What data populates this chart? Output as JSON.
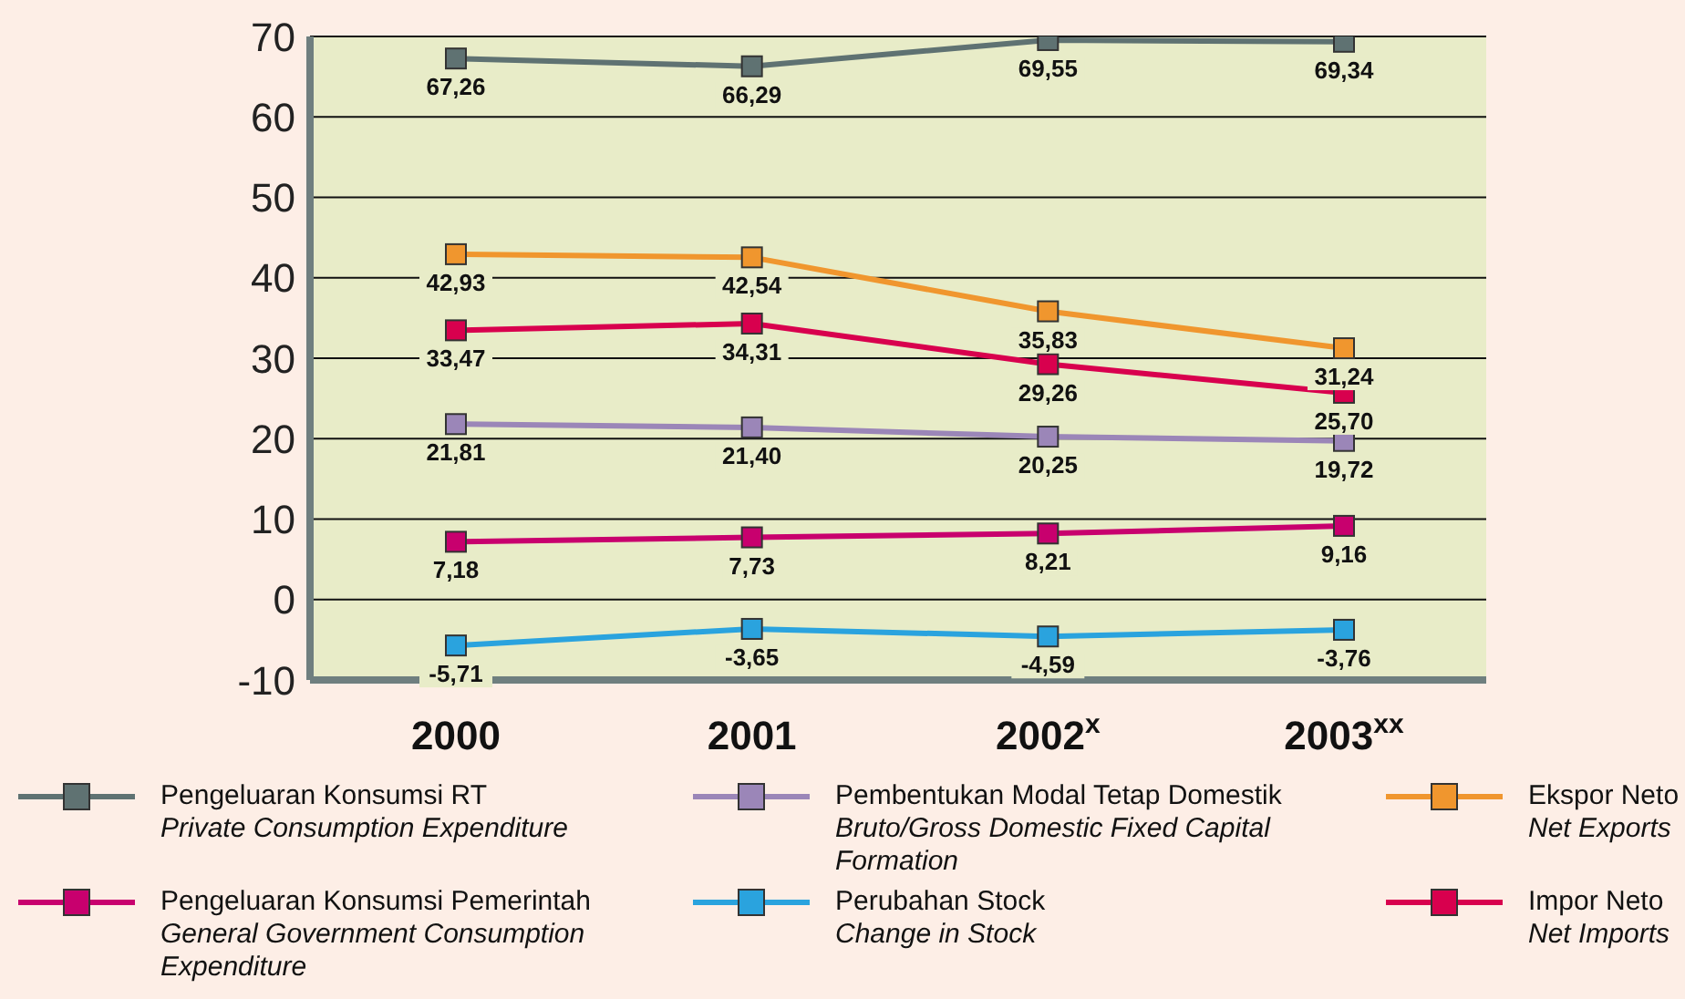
{
  "chart_data": {
    "type": "line",
    "categories": [
      "2000",
      "2001",
      "2002$^{x}$",
      "2003$^{xx}$"
    ],
    "series": [
      {
        "name": "Pengeluaran Konsumsi RT\nPrivate Consumption Expenditure",
        "color": "#5f7272",
        "values": [
          67.26,
          66.29,
          69.55,
          69.34
        ],
        "value_labels": [
          "67,26",
          "66,29",
          "69,55",
          "69,34"
        ]
      },
      {
        "name": "Pembentukan Modal Tetap Domestik\nBruto/Gross Domestic Fixed Capital Formation",
        "color": "#9b86b8",
        "values": [
          21.81,
          21.4,
          20.25,
          19.72
        ],
        "value_labels": [
          "21,81",
          "21,40",
          "20,25",
          "19,72"
        ]
      },
      {
        "name": "Ekspor Neto\nNet Exports",
        "color": "#f0962e",
        "values": [
          42.93,
          42.54,
          35.83,
          31.24
        ],
        "value_labels": [
          "42,93",
          "42,54",
          "35,83",
          "31,24"
        ]
      },
      {
        "name": "Pengeluaran Konsumsi Pemerintah\nGeneral Government Consumption Expenditure",
        "color": "#c8006e",
        "values": [
          7.18,
          7.73,
          8.21,
          9.16
        ],
        "value_labels": [
          "7,18",
          "7,73",
          "8,21",
          "9,16"
        ]
      },
      {
        "name": "Perubahan Stock\nChange in Stock",
        "color": "#2aa3de",
        "values": [
          -5.71,
          -3.65,
          -4.59,
          -3.76
        ],
        "value_labels": [
          "-5,71",
          "-3,65",
          "-4,59",
          "-3,76"
        ]
      },
      {
        "name": "Impor Neto\nNet Imports",
        "color": "#d8004e",
        "values": [
          33.47,
          34.31,
          29.26,
          25.7
        ],
        "value_labels": [
          "33,47",
          "34,31",
          "29,26",
          "25,70"
        ]
      }
    ],
    "ylim": [
      -10,
      70
    ],
    "yticks": [
      -10,
      0,
      10,
      20,
      30,
      40,
      50,
      60,
      70
    ],
    "grid": "y",
    "legend": "bottom",
    "marker": "square",
    "line_style": "solid"
  }
}
